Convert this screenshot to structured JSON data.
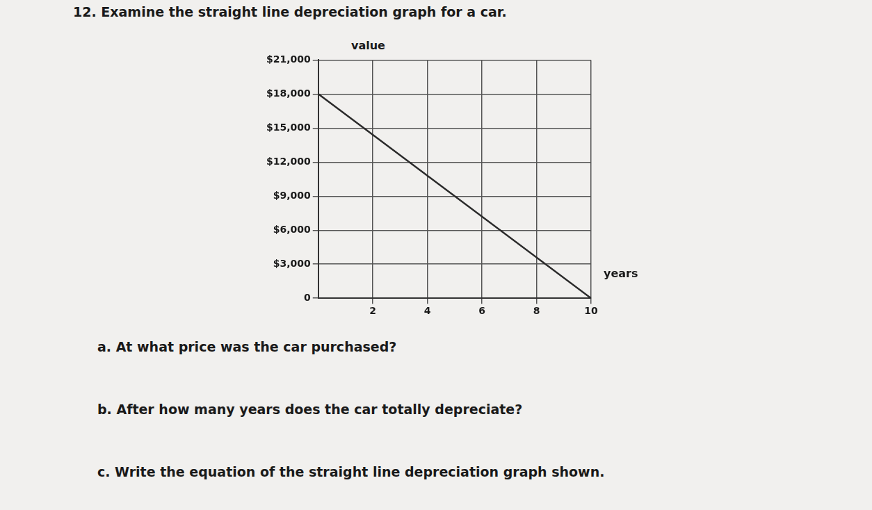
{
  "header": {
    "title": "12. Examine the straight line depreciation graph for a car."
  },
  "chart_data": {
    "type": "line",
    "xlabel": "years",
    "ylabel": "value",
    "x": [
      0,
      10
    ],
    "values": [
      18000,
      0
    ],
    "color": "#2a2a2a",
    "xlim": [
      0,
      10
    ],
    "xticks": [
      2,
      4,
      6,
      8,
      10
    ],
    "ylim": [
      0,
      21000
    ],
    "yticks": [
      0,
      {
        "value": 3000,
        "label": "$3,000"
      },
      {
        "value": 6000,
        "label": "$6,000"
      },
      {
        "value": 9000,
        "label": "$9,000"
      },
      {
        "value": 12000,
        "label": "$12,000"
      },
      {
        "value": 15000,
        "label": "$15,000"
      },
      {
        "value": 18000,
        "label": "$18,000"
      },
      {
        "value": 21000,
        "label": "$21,000"
      }
    ],
    "grid": true,
    "legend": false
  },
  "questions": [
    "a.  At what price was the car purchased?",
    "b.  After how many years does the car totally depreciate?",
    "c.  Write the equation of the straight line depreciation graph shown."
  ]
}
